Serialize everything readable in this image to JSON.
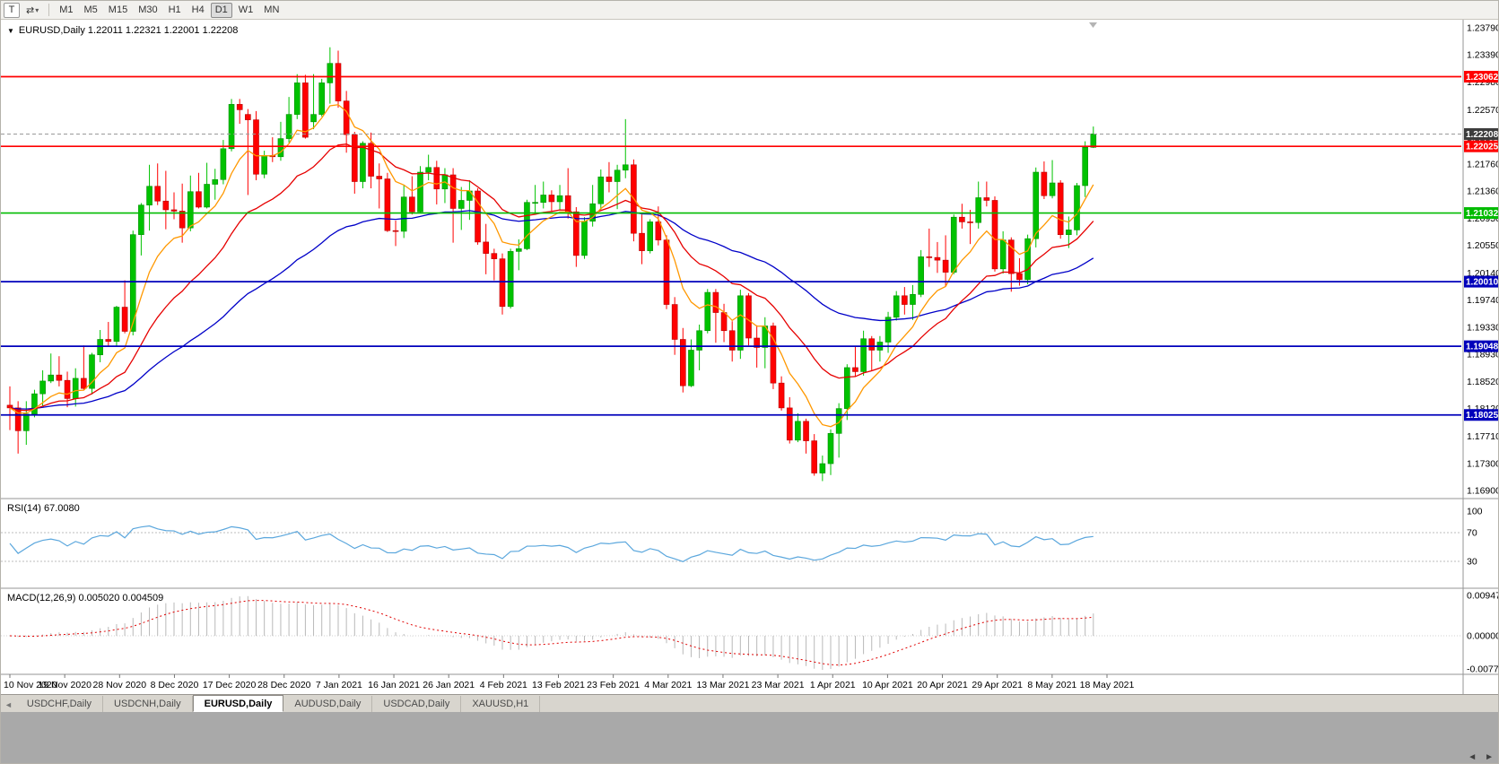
{
  "icons": {
    "caret_down": "▾",
    "triangle_down": "▼",
    "scroll_left": "◄",
    "scroll_right": "►"
  },
  "toolbar": {
    "t_button": "T",
    "arrows_icon": "⇄",
    "timeframes": [
      "M1",
      "M5",
      "M15",
      "M30",
      "H1",
      "H4",
      "D1",
      "W1",
      "MN"
    ],
    "active_timeframe": "D1"
  },
  "chart": {
    "header": "EURUSD,Daily  1.22011 1.22321 1.22001 1.22208"
  },
  "chart_data": {
    "type": "candlestick",
    "symbol": "EURUSD",
    "timeframe": "Daily",
    "ohlc_current": {
      "open": 1.22011,
      "high": 1.22321,
      "low": 1.22001,
      "close": 1.22208
    },
    "colors": {
      "up": "#00c200",
      "down": "#ff0000",
      "up_border": "#008f00",
      "down_border": "#b40000"
    },
    "price_axis": {
      "max": 1.2379,
      "min": 1.169,
      "ticks": [
        "1.23790",
        "1.23390",
        "1.22980",
        "1.22570",
        "1.22160",
        "1.21760",
        "1.21360",
        "1.20950",
        "1.20550",
        "1.20140",
        "1.19740",
        "1.19330",
        "1.18930",
        "1.18520",
        "1.18120",
        "1.17710",
        "1.17300",
        "1.16900"
      ]
    },
    "date_axis": {
      "labels": [
        "10 Nov 2020",
        "19 Nov 2020",
        "28 Nov 2020",
        "8 Dec 2020",
        "17 Dec 2020",
        "28 Dec 2020",
        "7 Jan 2021",
        "16 Jan 2021",
        "26 Jan 2021",
        "4 Feb 2021",
        "13 Feb 2021",
        "23 Feb 2021",
        "4 Mar 2021",
        "13 Mar 2021",
        "23 Mar 2021",
        "1 Apr 2021",
        "10 Apr 2021",
        "20 Apr 2021",
        "29 Apr 2021",
        "8 May 2021",
        "18 May 2021"
      ]
    },
    "hlines": [
      {
        "value": 1.23062,
        "label": "1.23062",
        "color": "#ff0000"
      },
      {
        "value": 1.22025,
        "label": "1.22025",
        "color": "#ff0000"
      },
      {
        "value": 1.21032,
        "label": "1.21032",
        "color": "#00bb00"
      },
      {
        "value": 1.2001,
        "label": "1.20010",
        "color": "#0000bb"
      },
      {
        "value": 1.19048,
        "label": "1.19048",
        "color": "#0000bb"
      },
      {
        "value": 1.18025,
        "label": "1.18025",
        "color": "#0000bb"
      }
    ],
    "current_price": {
      "value": 1.22208,
      "label": "1.22208",
      "badge_color": "#3c3c3c"
    },
    "ma_lines": [
      {
        "name": "fast-ma",
        "period": 8,
        "color": "#ff9800"
      },
      {
        "name": "medium-ma",
        "period": 20,
        "color": "#e60000"
      },
      {
        "name": "slow-ma",
        "period": 50,
        "color": "#0000c8"
      }
    ],
    "indicators": {
      "rsi": {
        "label": "RSI(14) 67.0080",
        "period": 14,
        "value": 67.008,
        "scale": [
          "100",
          "70",
          "30"
        ],
        "levels": [
          70,
          30
        ],
        "color": "#5ba7dd"
      },
      "macd": {
        "label": "MACD(12,26,9) 0.005020 0.004509",
        "fast": 12,
        "slow": 26,
        "signal": 9,
        "main_value": 0.00502,
        "signal_value": 0.004509,
        "scale": [
          "0.009478",
          "0.000000",
          "-0.007776"
        ],
        "scale_values": [
          0.009478,
          0,
          -0.007776
        ],
        "histogram_color": "#b9b9b9",
        "signal_color": "#e00000"
      }
    },
    "candles": [
      [
        1.1817,
        1.1845,
        1.178,
        1.1813
      ],
      [
        1.1813,
        1.1823,
        1.1745,
        1.1779
      ],
      [
        1.1779,
        1.1823,
        1.1758,
        1.1804
      ],
      [
        1.1804,
        1.184,
        1.1799,
        1.1834
      ],
      [
        1.1834,
        1.1869,
        1.1815,
        1.1853
      ],
      [
        1.1853,
        1.1894,
        1.185,
        1.1862
      ],
      [
        1.1862,
        1.189,
        1.1845,
        1.1854
      ],
      [
        1.1854,
        1.1867,
        1.1814,
        1.1827
      ],
      [
        1.1827,
        1.1872,
        1.1815,
        1.1857
      ],
      [
        1.1857,
        1.1906,
        1.184,
        1.1842
      ],
      [
        1.1842,
        1.1895,
        1.1833,
        1.1892
      ],
      [
        1.1892,
        1.1929,
        1.1881,
        1.1915
      ],
      [
        1.1915,
        1.1941,
        1.1905,
        1.1912
      ],
      [
        1.1912,
        1.1965,
        1.1905,
        1.1963
      ],
      [
        1.1963,
        1.2003,
        1.1924,
        1.1927
      ],
      [
        1.1927,
        1.2077,
        1.1921,
        1.2071
      ],
      [
        1.2071,
        1.2118,
        1.204,
        1.2115
      ],
      [
        1.2115,
        1.2175,
        1.2077,
        1.2143
      ],
      [
        1.2143,
        1.2177,
        1.2115,
        1.2121
      ],
      [
        1.2121,
        1.2166,
        1.2079,
        1.2108
      ],
      [
        1.2108,
        1.2134,
        1.2094,
        1.2106
      ],
      [
        1.2106,
        1.2147,
        1.2059,
        1.2081
      ],
      [
        1.2081,
        1.2159,
        1.2076,
        1.2135
      ],
      [
        1.2135,
        1.2163,
        1.211,
        1.2112
      ],
      [
        1.2112,
        1.2178,
        1.211,
        1.2146
      ],
      [
        1.2146,
        1.2169,
        1.2123,
        1.2153
      ],
      [
        1.2153,
        1.2212,
        1.2146,
        1.2199
      ],
      [
        1.2199,
        1.2273,
        1.2195,
        1.2265
      ],
      [
        1.2265,
        1.2273,
        1.2236,
        1.2257
      ],
      [
        1.225,
        1.2258,
        1.213,
        1.2242
      ],
      [
        1.2242,
        1.2255,
        1.2152,
        1.2161
      ],
      [
        1.2161,
        1.2196,
        1.2155,
        1.2189
      ],
      [
        1.2189,
        1.2216,
        1.2179,
        1.2187
      ],
      [
        1.2187,
        1.2239,
        1.2181,
        1.2214
      ],
      [
        1.2214,
        1.2276,
        1.2208,
        1.225
      ],
      [
        1.225,
        1.231,
        1.2243,
        1.2297
      ],
      [
        1.2297,
        1.2309,
        1.2214,
        1.2216
      ],
      [
        1.2239,
        1.231,
        1.2228,
        1.225
      ],
      [
        1.225,
        1.2303,
        1.2247,
        1.2297
      ],
      [
        1.2297,
        1.235,
        1.2266,
        1.2326
      ],
      [
        1.2326,
        1.2345,
        1.226,
        1.227
      ],
      [
        1.227,
        1.2285,
        1.2193,
        1.222
      ],
      [
        1.222,
        1.2224,
        1.2132,
        1.215
      ],
      [
        1.215,
        1.221,
        1.214,
        1.2207
      ],
      [
        1.2207,
        1.2223,
        1.214,
        1.2158
      ],
      [
        1.2158,
        1.2177,
        1.211,
        1.2154
      ],
      [
        1.2154,
        1.2163,
        1.2075,
        1.2077
      ],
      [
        1.2077,
        1.2092,
        1.2054,
        1.2076
      ],
      [
        1.2076,
        1.2145,
        1.2066,
        1.2127
      ],
      [
        1.2127,
        1.2158,
        1.2101,
        1.2105
      ],
      [
        1.2105,
        1.2173,
        1.2103,
        1.2164
      ],
      [
        1.2164,
        1.219,
        1.2152,
        1.2171
      ],
      [
        1.2171,
        1.2181,
        1.2116,
        1.2139
      ],
      [
        1.2139,
        1.217,
        1.2118,
        1.216
      ],
      [
        1.216,
        1.217,
        1.2059,
        1.211
      ],
      [
        1.211,
        1.2142,
        1.2078,
        1.2122
      ],
      [
        1.2122,
        1.2152,
        1.2093,
        1.2136
      ],
      [
        1.2136,
        1.214,
        1.2056,
        1.206
      ],
      [
        1.206,
        1.2087,
        1.2012,
        1.2043
      ],
      [
        1.2043,
        1.205,
        1.2003,
        1.2035
      ],
      [
        1.2035,
        1.2043,
        1.1952,
        1.1964
      ],
      [
        1.1964,
        1.205,
        1.1961,
        1.2046
      ],
      [
        1.2046,
        1.2064,
        1.2018,
        1.205
      ],
      [
        1.205,
        1.2123,
        1.2048,
        1.2119
      ],
      [
        1.2119,
        1.2145,
        1.2102,
        1.2119
      ],
      [
        1.2119,
        1.215,
        1.211,
        1.213
      ],
      [
        1.213,
        1.2137,
        1.2106,
        1.212
      ],
      [
        1.212,
        1.2145,
        1.2108,
        1.2129
      ],
      [
        1.2129,
        1.217,
        1.2095,
        1.2105
      ],
      [
        1.2105,
        1.2112,
        1.2023,
        1.204
      ],
      [
        1.204,
        1.2097,
        1.2035,
        1.2091
      ],
      [
        1.2091,
        1.2145,
        1.2083,
        1.2117
      ],
      [
        1.2117,
        1.2168,
        1.2108,
        1.2157
      ],
      [
        1.2157,
        1.2179,
        1.2134,
        1.215
      ],
      [
        1.215,
        1.2175,
        1.2109,
        1.2167
      ],
      [
        1.2167,
        1.2243,
        1.2155,
        1.2175
      ],
      [
        1.2175,
        1.2183,
        1.2061,
        1.2073
      ],
      [
        1.2073,
        1.2101,
        1.2027,
        1.2047
      ],
      [
        1.2047,
        1.2094,
        1.2043,
        1.209
      ],
      [
        1.209,
        1.2113,
        1.2055,
        1.2063
      ],
      [
        1.2063,
        1.207,
        1.196,
        1.1967
      ],
      [
        1.1967,
        1.1978,
        1.1892,
        1.1915
      ],
      [
        1.1915,
        1.1932,
        1.1836,
        1.1846
      ],
      [
        1.1846,
        1.1915,
        1.1844,
        1.1899
      ],
      [
        1.1899,
        1.1937,
        1.1869,
        1.1928
      ],
      [
        1.1928,
        1.199,
        1.1924,
        1.1985
      ],
      [
        1.1985,
        1.199,
        1.191,
        1.1955
      ],
      [
        1.1955,
        1.1968,
        1.1911,
        1.1928
      ],
      [
        1.1928,
        1.1942,
        1.1882,
        1.1899
      ],
      [
        1.1899,
        1.1989,
        1.1886,
        1.198
      ],
      [
        1.198,
        1.1984,
        1.1906,
        1.1917
      ],
      [
        1.1917,
        1.1936,
        1.1873,
        1.1903
      ],
      [
        1.1903,
        1.1948,
        1.1872,
        1.1935
      ],
      [
        1.1935,
        1.194,
        1.1841,
        1.185
      ],
      [
        1.185,
        1.186,
        1.1809,
        1.1813
      ],
      [
        1.1813,
        1.1829,
        1.176,
        1.1765
      ],
      [
        1.1765,
        1.1805,
        1.1762,
        1.1793
      ],
      [
        1.1793,
        1.1797,
        1.1745,
        1.1764
      ],
      [
        1.1764,
        1.1774,
        1.1712,
        1.1716
      ],
      [
        1.1716,
        1.1742,
        1.1704,
        1.173
      ],
      [
        1.173,
        1.1781,
        1.1713,
        1.1775
      ],
      [
        1.1775,
        1.182,
        1.1739,
        1.1812
      ],
      [
        1.1812,
        1.1878,
        1.1795,
        1.1873
      ],
      [
        1.1873,
        1.1905,
        1.186,
        1.1867
      ],
      [
        1.1867,
        1.1928,
        1.1861,
        1.1916
      ],
      [
        1.1916,
        1.192,
        1.1868,
        1.1899
      ],
      [
        1.1899,
        1.192,
        1.1882,
        1.1911
      ],
      [
        1.1911,
        1.1956,
        1.1895,
        1.1948
      ],
      [
        1.1948,
        1.1987,
        1.1943,
        1.198
      ],
      [
        1.198,
        1.1993,
        1.1952,
        1.1967
      ],
      [
        1.1967,
        1.1996,
        1.1944,
        1.1982
      ],
      [
        1.1982,
        1.2048,
        1.1978,
        1.2038
      ],
      [
        1.2038,
        1.208,
        1.2023,
        1.2037
      ],
      [
        1.2037,
        1.206,
        1.2014,
        1.2033
      ],
      [
        1.2033,
        1.207,
        1.1994,
        1.2015
      ],
      [
        1.2015,
        1.2101,
        1.2012,
        1.2097
      ],
      [
        1.2097,
        1.2117,
        1.208,
        1.209
      ],
      [
        1.209,
        1.2108,
        1.2057,
        1.2089
      ],
      [
        1.2089,
        1.215,
        1.208,
        1.2126
      ],
      [
        1.2126,
        1.215,
        1.2113,
        1.2122
      ],
      [
        1.2122,
        1.2128,
        1.2016,
        1.202
      ],
      [
        1.202,
        1.2076,
        1.2013,
        1.2063
      ],
      [
        1.2063,
        1.2067,
        1.1986,
        1.2013
      ],
      [
        1.2013,
        1.2036,
        1.1995,
        1.2004
      ],
      [
        1.2004,
        1.2071,
        1.1997,
        1.2065
      ],
      [
        1.2065,
        1.2171,
        1.2052,
        1.2164
      ],
      [
        1.2164,
        1.218,
        1.2124,
        1.2129
      ],
      [
        1.2129,
        1.2182,
        1.2125,
        1.2148
      ],
      [
        1.2148,
        1.2152,
        1.2065,
        1.2071
      ],
      [
        1.2071,
        1.2098,
        1.2051,
        1.2078
      ],
      [
        1.2078,
        1.2148,
        1.207,
        1.2144
      ],
      [
        1.2144,
        1.221,
        1.2127,
        1.2201
      ],
      [
        1.2201,
        1.2232,
        1.22,
        1.2221
      ]
    ]
  },
  "bottom_tabs": {
    "items": [
      {
        "label": "USDCHF,Daily",
        "active": false
      },
      {
        "label": "USDCNH,Daily",
        "active": false
      },
      {
        "label": "EURUSD,Daily",
        "active": true
      },
      {
        "label": "AUDUSD,Daily",
        "active": false
      },
      {
        "label": "USDCAD,Daily",
        "active": false
      },
      {
        "label": "XAUUSD,H1",
        "active": false
      }
    ]
  }
}
